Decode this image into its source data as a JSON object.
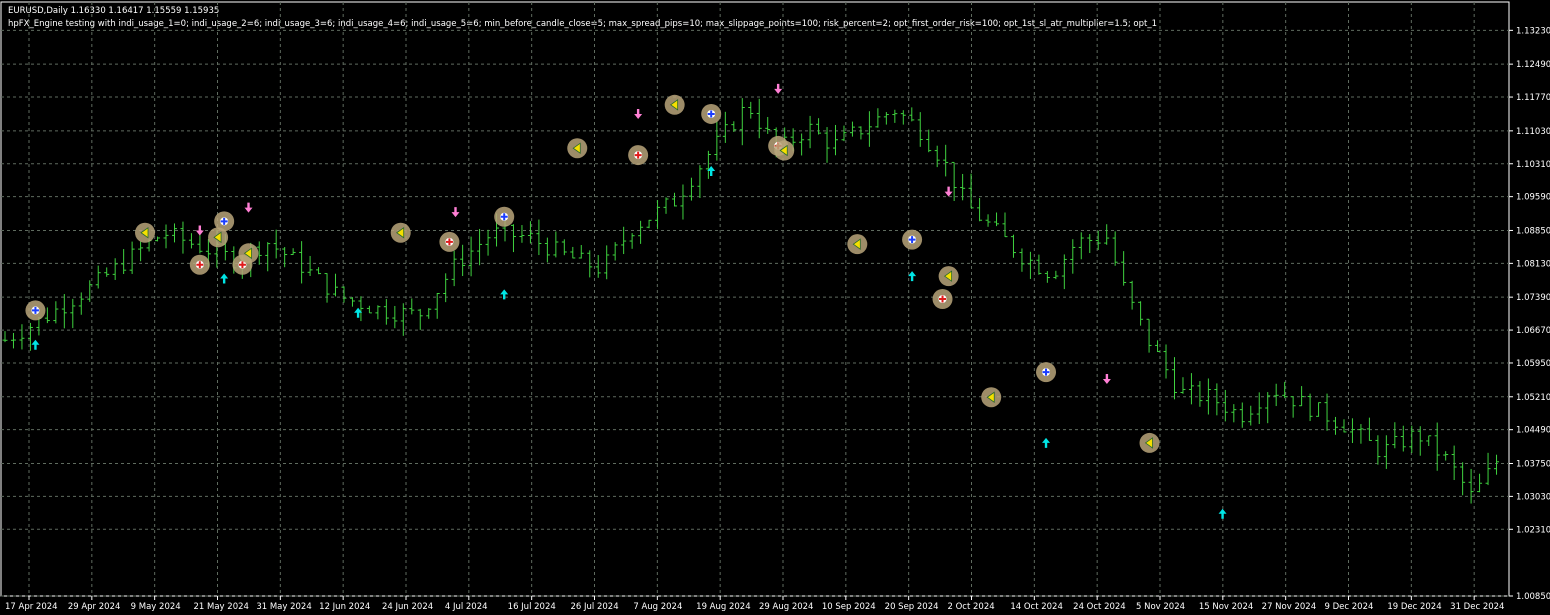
{
  "window": {
    "symbol_line": "EURUSD,Daily  1.16330 1.16417 1.15559 1.15935",
    "test_line": "hpFX_Engine testing with indi_usage_1=0; indi_usage_2=6; indi_usage_3=6; indi_usage_4=6; indi_usage_5=6; min_before_candle_close=5; max_spread_pips=10; max_slippage_points=100; risk_percent=2; opt_first_order_risk=100; opt_1st_sl_atr_multiplier=1.5; opt_1"
  },
  "colors": {
    "background": "#000000",
    "grid": "#5f6b5f",
    "bar": "#3fd23f",
    "axis": "#ffffff",
    "buy_arrow": "#00e5e5",
    "sell_arrow": "#ff7fd4",
    "marker_fill": "#b8a57a",
    "buy_marker": "#1a3cff",
    "sell_marker": "#e01b1b",
    "close_marker": "#f5e000"
  },
  "chart_data": {
    "type": "bar",
    "ylim": [
      1.0085,
      1.1385
    ],
    "y_ticks": [
      "1.13230",
      "1.12490",
      "1.11770",
      "1.11030",
      "1.10310",
      "1.09590",
      "1.08850",
      "1.08130",
      "1.07390",
      "1.06670",
      "1.05950",
      "1.05210",
      "1.04490",
      "1.03750",
      "1.03030",
      "1.02310",
      "1.00850"
    ],
    "x_ticks": [
      "17 Apr 2024",
      "29 Apr 2024",
      "9 May 2024",
      "21 May 2024",
      "31 May 2024",
      "12 Jun 2024",
      "24 Jun 2024",
      "4 Jul 2024",
      "16 Jul 2024",
      "26 Jul 2024",
      "7 Aug 2024",
      "19 Aug 2024",
      "29 Aug 2024",
      "10 Sep 2024",
      "20 Sep 2024",
      "2 Oct 2024",
      "14 Oct 2024",
      "24 Oct 2024",
      "5 Nov 2024",
      "15 Nov 2024",
      "27 Nov 2024",
      "9 Dec 2024",
      "19 Dec 2024",
      "31 Dec 2024"
    ],
    "bar_count": 177,
    "path_points": [
      [
        0,
        1.0645
      ],
      [
        6,
        1.069
      ],
      [
        14,
        1.076
      ],
      [
        22,
        1.084
      ],
      [
        26,
        1.088
      ],
      [
        32,
        1.085
      ],
      [
        38,
        1.082
      ],
      [
        43,
        1.086
      ],
      [
        48,
        1.0815
      ],
      [
        55,
        1.074
      ],
      [
        62,
        1.071
      ],
      [
        68,
        1.07
      ],
      [
        74,
        1.081
      ],
      [
        80,
        1.088
      ],
      [
        86,
        1.087
      ],
      [
        92,
        1.083
      ],
      [
        98,
        1.08
      ],
      [
        103,
        1.089
      ],
      [
        110,
        1.095
      ],
      [
        116,
        1.106
      ],
      [
        122,
        1.116
      ],
      [
        127,
        1.106
      ],
      [
        132,
        1.111
      ],
      [
        136,
        1.107
      ],
      [
        141,
        1.111
      ],
      [
        146,
        1.115
      ],
      [
        150,
        1.111
      ],
      [
        154,
        1.104
      ],
      [
        158,
        1.094
      ],
      [
        163,
        1.088
      ],
      [
        167,
        1.083
      ],
      [
        172,
        1.079
      ],
      [
        176,
        1.086
      ],
      [
        181,
        1.087
      ],
      [
        184,
        1.075
      ],
      [
        188,
        1.064
      ],
      [
        193,
        1.053
      ],
      [
        198,
        1.052
      ],
      [
        203,
        1.048
      ],
      [
        208,
        1.054
      ],
      [
        214,
        1.05
      ],
      [
        220,
        1.046
      ],
      [
        226,
        1.04
      ],
      [
        232,
        1.044
      ],
      [
        237,
        1.038
      ],
      [
        241,
        1.03
      ],
      [
        245,
        1.038
      ]
    ],
    "trade_markers": [
      {
        "bar": 5,
        "price": 1.071,
        "kind": "buy"
      },
      {
        "bar": 23,
        "price": 1.088,
        "kind": "close"
      },
      {
        "bar": 32,
        "price": 1.081,
        "kind": "sell"
      },
      {
        "bar": 35,
        "price": 1.087,
        "kind": "close"
      },
      {
        "bar": 36,
        "price": 1.0905,
        "kind": "buy"
      },
      {
        "bar": 39,
        "price": 1.081,
        "kind": "sell"
      },
      {
        "bar": 40,
        "price": 1.0835,
        "kind": "close"
      },
      {
        "bar": 65,
        "price": 1.088,
        "kind": "close"
      },
      {
        "bar": 73,
        "price": 1.086,
        "kind": "sell"
      },
      {
        "bar": 82,
        "price": 1.0915,
        "kind": "buy"
      },
      {
        "bar": 94,
        "price": 1.1065,
        "kind": "close"
      },
      {
        "bar": 104,
        "price": 1.105,
        "kind": "sell"
      },
      {
        "bar": 110,
        "price": 1.116,
        "kind": "close"
      },
      {
        "bar": 116,
        "price": 1.114,
        "kind": "buy"
      },
      {
        "bar": 127,
        "price": 1.107,
        "kind": "sell"
      },
      {
        "bar": 128,
        "price": 1.106,
        "kind": "close"
      },
      {
        "bar": 140,
        "price": 1.0855,
        "kind": "close"
      },
      {
        "bar": 149,
        "price": 1.0865,
        "kind": "buy"
      },
      {
        "bar": 154,
        "price": 1.0735,
        "kind": "sell"
      },
      {
        "bar": 155,
        "price": 1.0785,
        "kind": "close"
      },
      {
        "bar": 162,
        "price": 1.052,
        "kind": "close"
      },
      {
        "bar": 171,
        "price": 1.0575,
        "kind": "buy"
      },
      {
        "bar": 188,
        "price": 1.042,
        "kind": "close"
      }
    ],
    "signal_arrows": [
      {
        "bar": 5,
        "price": 1.0635,
        "kind": "buy"
      },
      {
        "bar": 32,
        "price": 1.0885,
        "kind": "sell"
      },
      {
        "bar": 36,
        "price": 1.078,
        "kind": "buy"
      },
      {
        "bar": 40,
        "price": 1.0935,
        "kind": "sell"
      },
      {
        "bar": 58,
        "price": 1.0705,
        "kind": "buy"
      },
      {
        "bar": 74,
        "price": 1.0925,
        "kind": "sell"
      },
      {
        "bar": 82,
        "price": 1.0745,
        "kind": "buy"
      },
      {
        "bar": 104,
        "price": 1.114,
        "kind": "sell"
      },
      {
        "bar": 116,
        "price": 1.1015,
        "kind": "buy"
      },
      {
        "bar": 127,
        "price": 1.1195,
        "kind": "sell"
      },
      {
        "bar": 149,
        "price": 1.0785,
        "kind": "buy"
      },
      {
        "bar": 155,
        "price": 1.097,
        "kind": "sell"
      },
      {
        "bar": 171,
        "price": 1.042,
        "kind": "buy"
      },
      {
        "bar": 181,
        "price": 1.056,
        "kind": "sell"
      },
      {
        "bar": 200,
        "price": 1.0265,
        "kind": "buy"
      }
    ]
  }
}
